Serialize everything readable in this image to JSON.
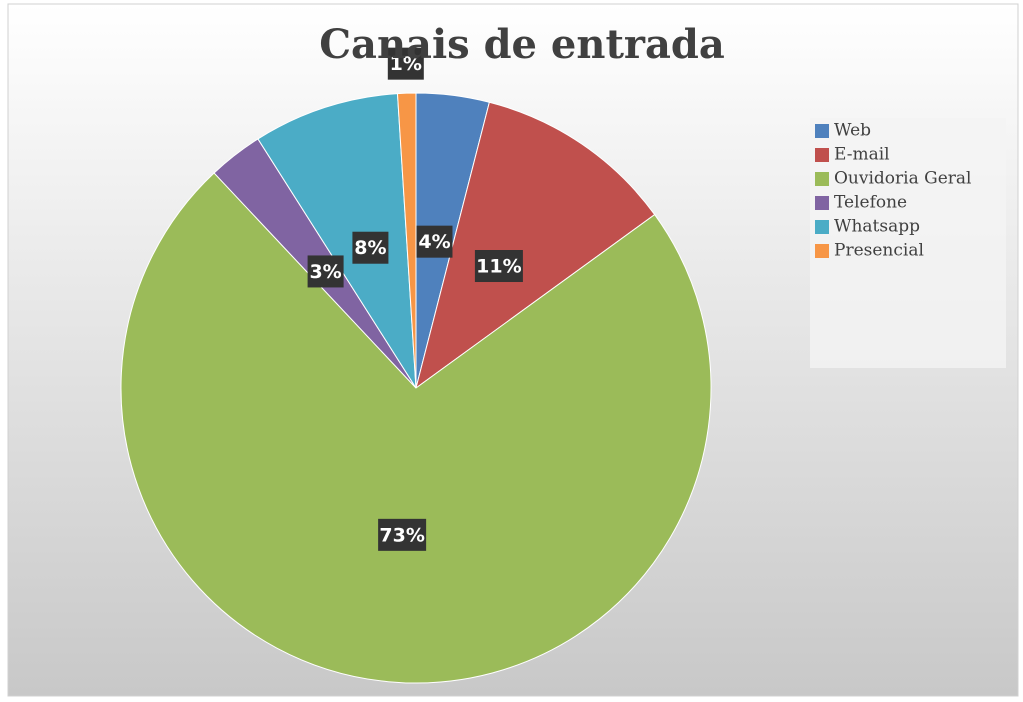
{
  "chart_data": {
    "type": "pie",
    "title": "Canais de entrada",
    "categories": [
      "Web",
      "E-mail",
      "Ouvidoria Geral",
      "Telefone",
      "Whatsapp",
      "Presencial"
    ],
    "values": [
      4,
      11,
      73,
      3,
      8,
      1
    ],
    "value_labels": [
      "4%",
      "11%",
      "73%",
      "3%",
      "8%",
      "1%"
    ],
    "colors": [
      "#4f81bd",
      "#c0504d",
      "#9bbb59",
      "#8064a2",
      "#4bacc6",
      "#f79646"
    ],
    "legend": "right"
  }
}
